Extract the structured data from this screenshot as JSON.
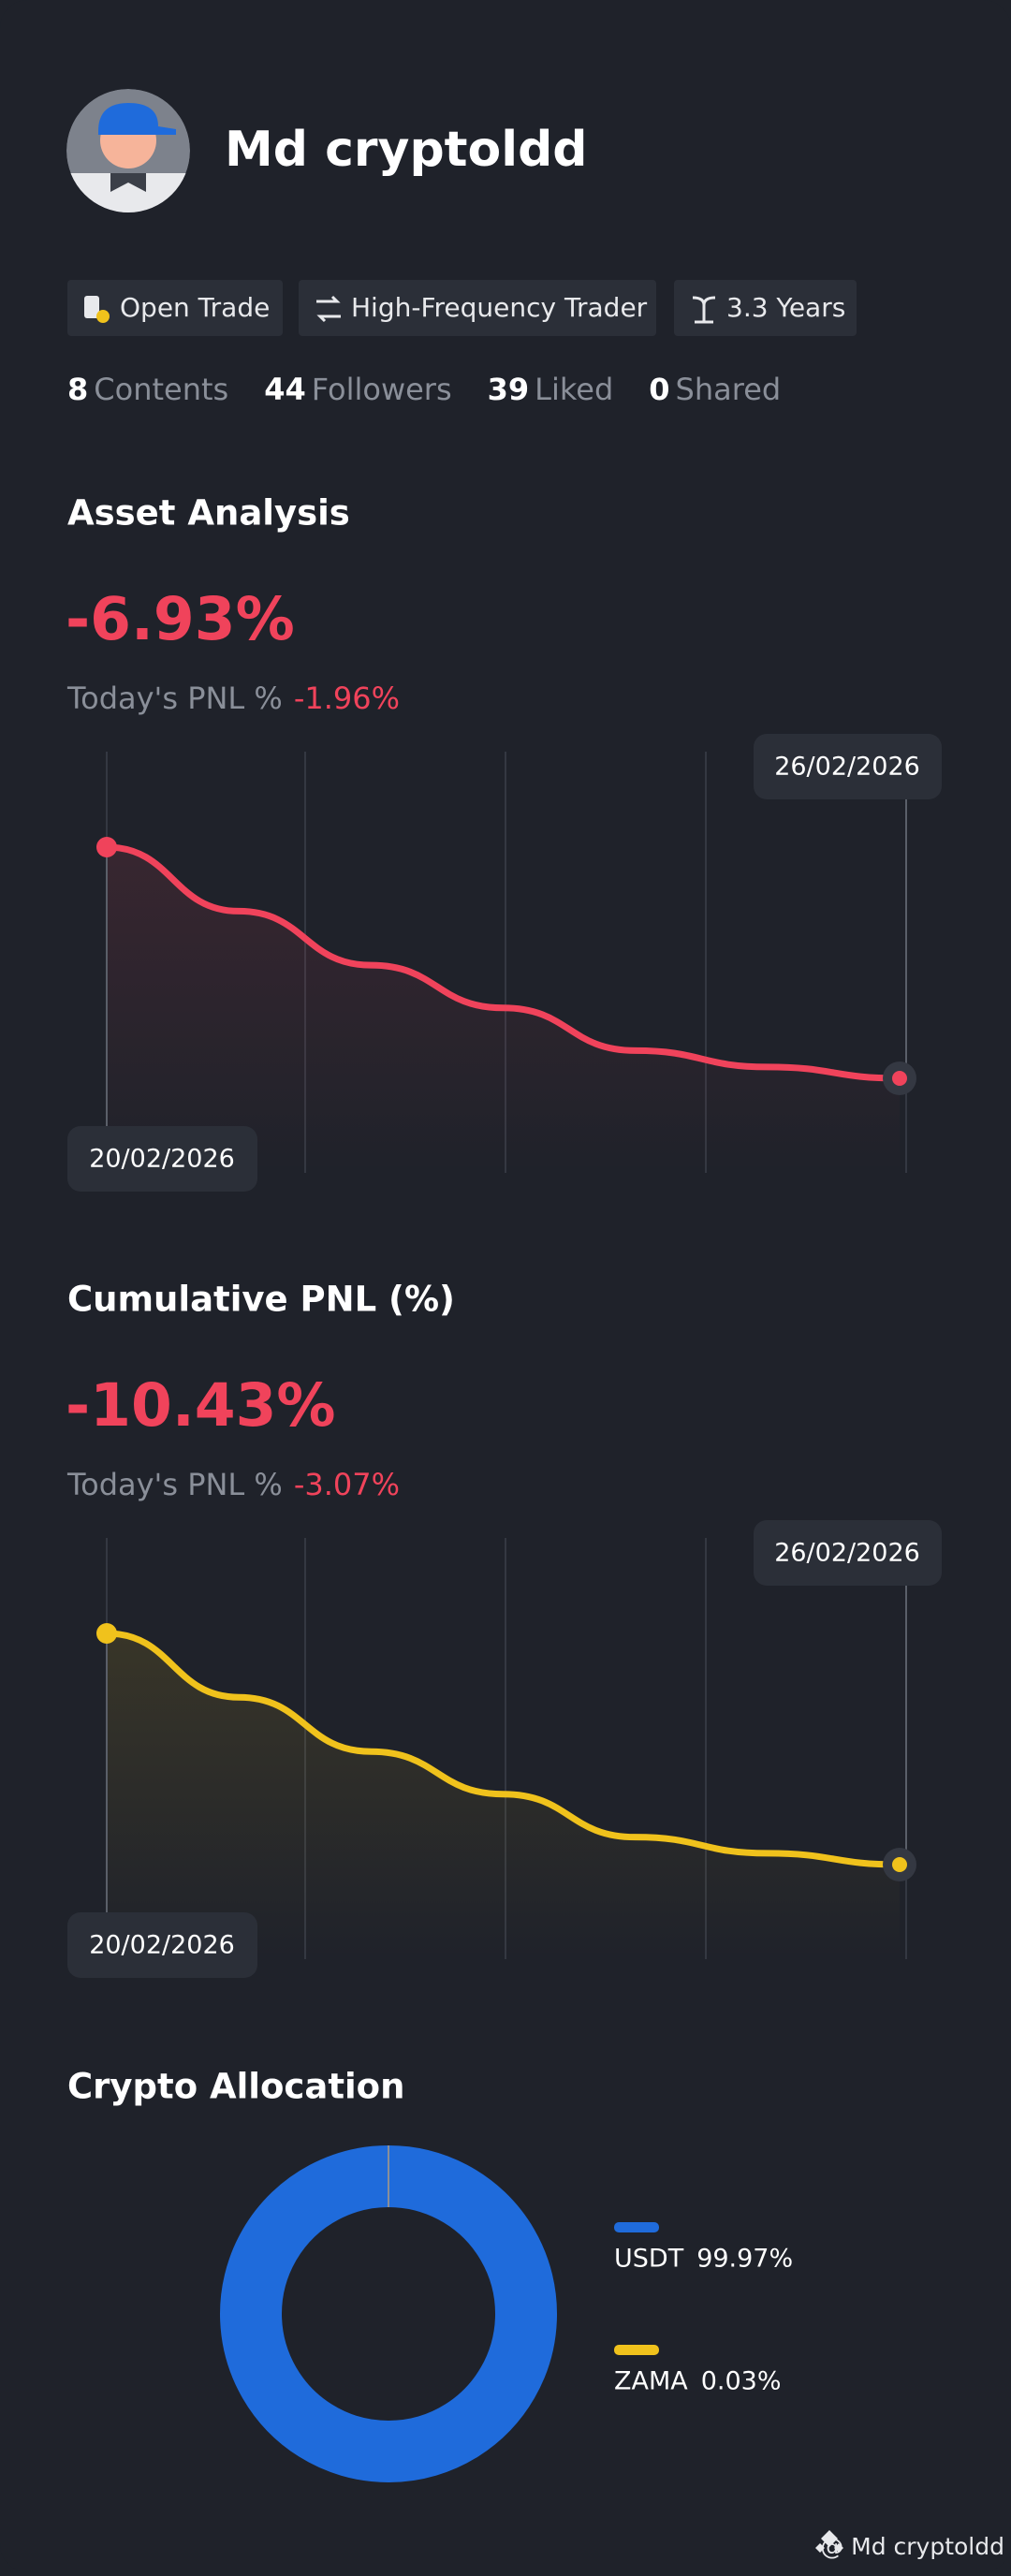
{
  "profile": {
    "name": "Md cryptoldd",
    "tags": [
      "Open Trade",
      "High-Frequency Trader",
      "3.3 Years"
    ],
    "stats": [
      {
        "value": 8,
        "label": "Contents"
      },
      {
        "value": 44,
        "label": "Followers"
      },
      {
        "value": 39,
        "label": "Liked"
      },
      {
        "value": 0,
        "label": "Shared"
      }
    ]
  },
  "sections": [
    {
      "title": "Asset Analysis",
      "value": "-6.93%",
      "today_label": "Today's PNL %",
      "today_value": "-1.96%",
      "start_date": "20/02/2026",
      "end_date": "26/02/2026",
      "color": "#f0435b",
      "values": [
        0,
        -1.92,
        -3.54,
        -4.82,
        -6.1,
        -6.59,
        -6.93
      ]
    },
    {
      "title": "Cumulative PNL (%)",
      "value": "-10.43%",
      "today_label": "Today's PNL %",
      "today_value": "-3.07%",
      "start_date": "20/02/2026",
      "end_date": "26/02/2026",
      "color": "#f0c21c",
      "values": [
        0,
        -2.88,
        -5.33,
        -7.25,
        -9.19,
        -9.92,
        -10.43
      ]
    }
  ],
  "allocation": {
    "title": "Crypto Allocation",
    "items": [
      {
        "name": "USDT",
        "label": "99.97%",
        "value": 99.97,
        "color": "#1f6bdb"
      },
      {
        "name": "ZAMA",
        "label": "0.03%",
        "value": 0.03,
        "color": "#f0c21c"
      }
    ]
  },
  "footer": "@ Md cryptoldd"
}
